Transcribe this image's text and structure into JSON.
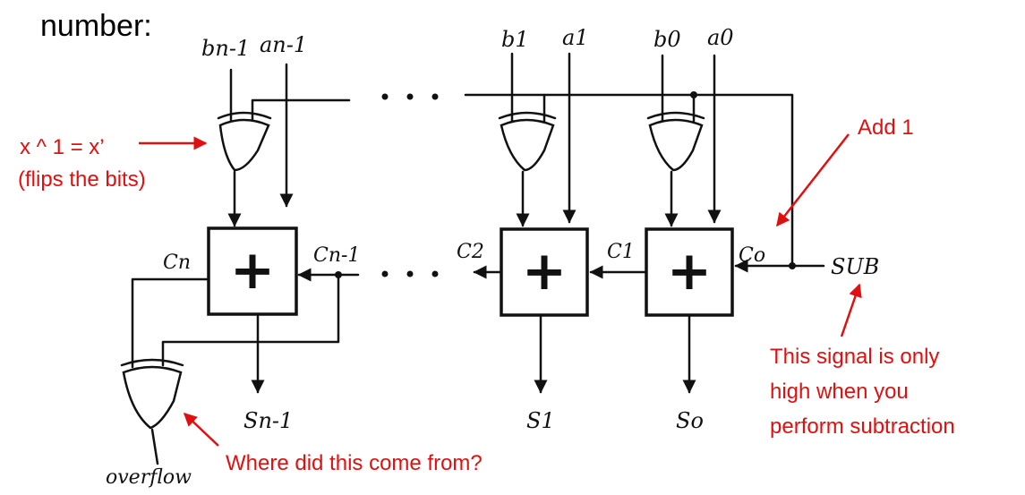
{
  "header": {
    "title": "number:"
  },
  "inputs": {
    "b_n1": "bn-1",
    "a_n1": "an-1",
    "b1": "b1",
    "a1": "a1",
    "b0": "b0",
    "a0": "a0"
  },
  "carries": {
    "cn": "Cn",
    "cn1": "Cn-1",
    "c2": "C2",
    "c1": "C1",
    "c0": "Co"
  },
  "outputs": {
    "s_n1": "Sn-1",
    "s1": "S1",
    "s0": "So",
    "overflow": "overflow"
  },
  "adder_symbol": "+",
  "sub_label": "SUB",
  "annotations": {
    "xor_identity": "x ^ 1 = x’",
    "flips": "(flips the bits)",
    "add_one": "Add 1",
    "signal_line1": "This signal is only",
    "signal_line2": "high when you",
    "signal_line3": "perform subtraction",
    "where_from": "Where did this come from?"
  },
  "colors": {
    "annotation": "#e01010",
    "ink": "#111111"
  }
}
